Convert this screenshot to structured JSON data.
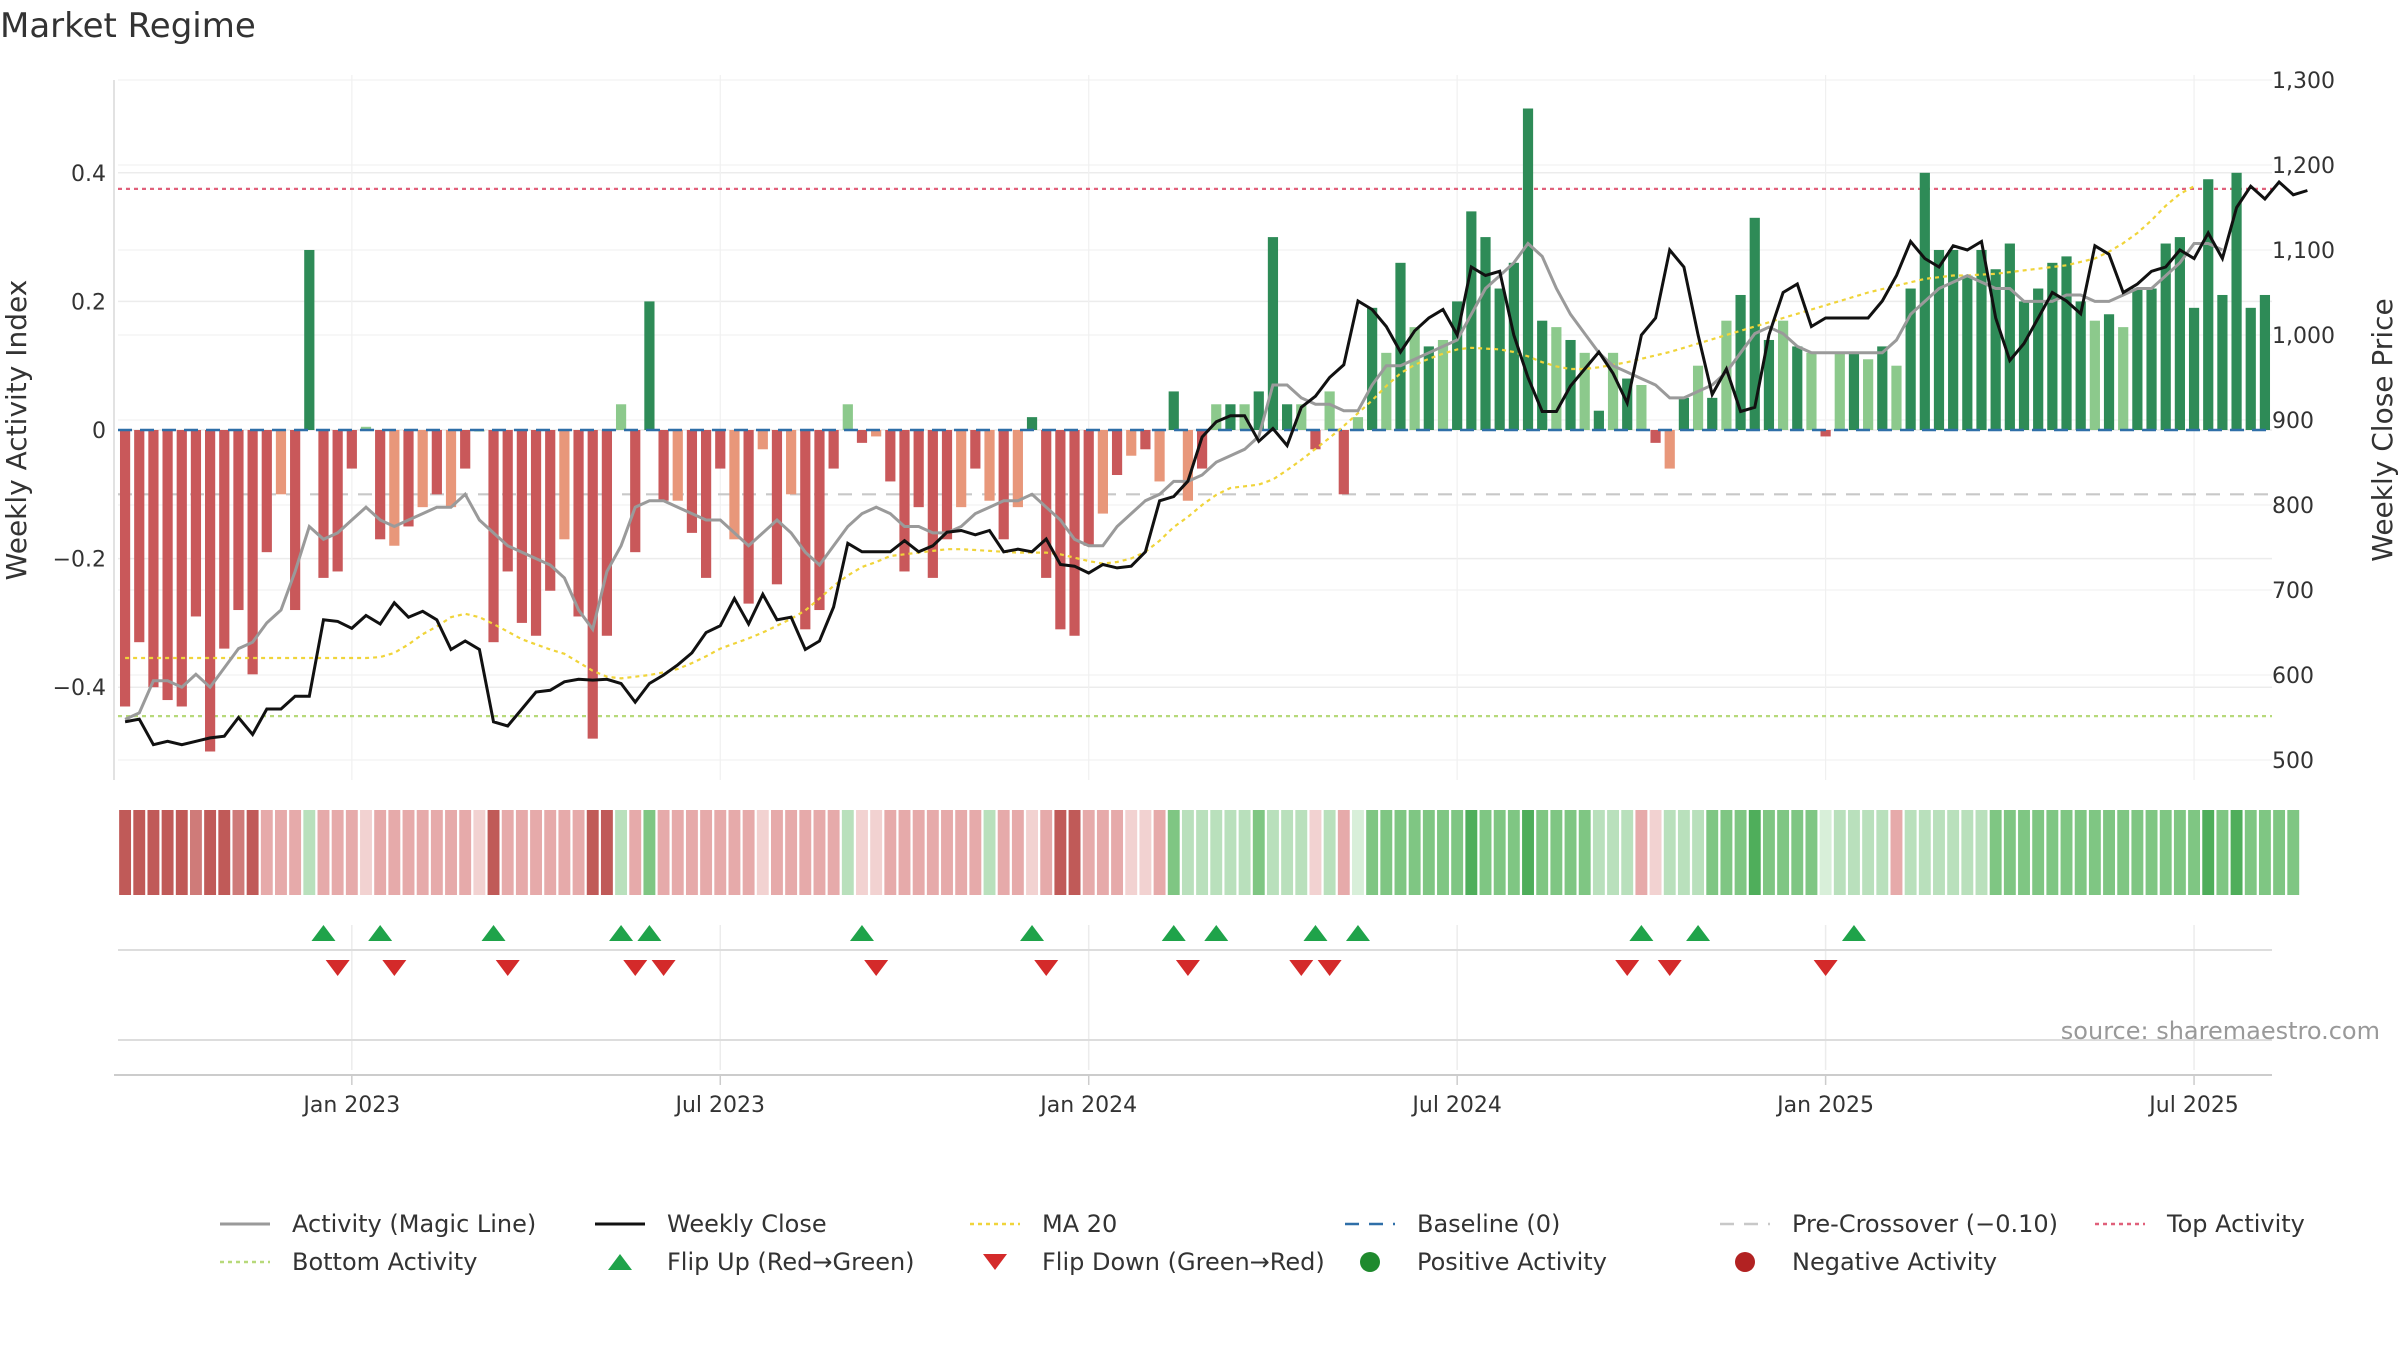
{
  "title": "Market Regime",
  "source": "source: sharemaestro.com",
  "colors": {
    "posStrong": "#2e8b57",
    "posLight": "#8cc98c",
    "negStrong": "#c9585a",
    "negLight": "#e8977a",
    "magic": "#9a9a9a",
    "close": "#111111",
    "ma": "#f0d43a",
    "baseline": "#2f6fa8",
    "precross": "#c8c8c8",
    "top": "#e0607a",
    "bottom": "#b7d97a",
    "flipUp": "#1fa34a",
    "flipDown": "#d42a2a"
  },
  "chart_data": {
    "type": "bar",
    "y_left_label": "Weekly Activity Index",
    "y_right_label": "Weekly Close Price",
    "y_left_ticks": [
      "0.4",
      "0.2",
      "0",
      "−0.2",
      "−0.4"
    ],
    "y_left_tick_values": [
      0.4,
      0.2,
      0,
      -0.2,
      -0.4
    ],
    "y_right_ticks": [
      "1,300",
      "1,200",
      "1,100",
      "1,000",
      "900",
      "800",
      "700",
      "600",
      "500"
    ],
    "y_right_tick_values": [
      1300,
      1200,
      1100,
      1000,
      900,
      800,
      700,
      600,
      500
    ],
    "ylim_left": [
      -0.54,
      0.54
    ],
    "ylim_right": [
      480,
      1300
    ],
    "x_ticks": [
      "Jan 2023",
      "Jul 2023",
      "Jan 2024",
      "Jul 2024",
      "Jan 2025",
      "Jul 2025"
    ],
    "x_tick_weeks": [
      16,
      42,
      68,
      94,
      120,
      146
    ],
    "legend": [
      {
        "label": "Activity (Magic Line)",
        "kind": "line",
        "color": "#9a9a9a"
      },
      {
        "label": "Weekly Close",
        "kind": "line",
        "color": "#111111"
      },
      {
        "label": "MA 20",
        "kind": "dotted",
        "color": "#f0d43a"
      },
      {
        "label": "Baseline (0)",
        "kind": "dashed",
        "color": "#2f6fa8"
      },
      {
        "label": "Pre-Crossover (−0.10)",
        "kind": "dashed",
        "color": "#c8c8c8"
      },
      {
        "label": "Top Activity",
        "kind": "dotted",
        "color": "#e0607a"
      },
      {
        "label": "Bottom Activity",
        "kind": "dotted",
        "color": "#b7d97a"
      },
      {
        "label": "Flip Up (Red→Green)",
        "kind": "tri-up",
        "color": "#1fa34a"
      },
      {
        "label": "Flip Down (Green→Red)",
        "kind": "tri-down",
        "color": "#d42a2a"
      },
      {
        "label": "Positive Activity",
        "kind": "dot",
        "color": "#1f8a2e"
      },
      {
        "label": "Negative Activity",
        "kind": "dot",
        "color": "#b22222"
      }
    ],
    "reference_lines": {
      "top": 0.375,
      "bottom": -0.445,
      "pre_crossover": -0.1,
      "baseline": 0
    },
    "activity": [
      -0.43,
      -0.33,
      -0.4,
      -0.42,
      -0.43,
      -0.29,
      -0.5,
      -0.34,
      -0.28,
      -0.38,
      -0.19,
      -0.1,
      -0.28,
      0.28,
      -0.23,
      -0.22,
      -0.06,
      0.005,
      -0.17,
      -0.18,
      -0.15,
      -0.12,
      -0.1,
      -0.12,
      -0.06,
      0,
      -0.33,
      -0.22,
      -0.3,
      -0.32,
      -0.25,
      -0.17,
      -0.29,
      -0.48,
      -0.32,
      0.04,
      -0.19,
      0.2,
      -0.11,
      -0.11,
      -0.16,
      -0.23,
      -0.06,
      -0.17,
      -0.27,
      -0.03,
      -0.24,
      -0.1,
      -0.31,
      -0.28,
      -0.06,
      0.04,
      -0.02,
      -0.01,
      -0.08,
      -0.22,
      -0.12,
      -0.23,
      -0.17,
      -0.12,
      -0.06,
      -0.11,
      -0.17,
      -0.12,
      0.02,
      -0.23,
      -0.31,
      -0.32,
      -0.18,
      -0.13,
      -0.07,
      -0.04,
      -0.03,
      -0.08,
      0.06,
      -0.11,
      -0.06,
      0.04,
      0.04,
      0.04,
      0.06,
      0.3,
      0.04,
      0.04,
      -0.03,
      0.06,
      -0.1,
      0.02,
      0.19,
      0.12,
      0.26,
      0.16,
      0.13,
      0.14,
      0.2,
      0.34,
      0.3,
      0.22,
      0.26,
      0.5,
      0.17,
      0.16,
      0.14,
      0.12,
      0.03,
      0.12,
      0.08,
      0.07,
      -0.02,
      -0.06,
      0.05,
      0.1,
      0.05,
      0.17,
      0.21,
      0.33,
      0.14,
      0.17,
      0.13,
      0.12,
      -0.01,
      0.12,
      0.12,
      0.11,
      0.13,
      0.1,
      0.22,
      0.4,
      0.28,
      0.28,
      0.24,
      0.28,
      0.25,
      0.29,
      0.2,
      0.22,
      0.26,
      0.27,
      0.2,
      0.17,
      0.18,
      0.16,
      0.22,
      0.22,
      0.29,
      0.3,
      0.19,
      0.39,
      0.21,
      0.4,
      0.19,
      0.21
    ],
    "magic": [
      -0.45,
      -0.44,
      -0.39,
      -0.39,
      -0.4,
      -0.38,
      -0.4,
      -0.37,
      -0.34,
      -0.33,
      -0.3,
      -0.28,
      -0.22,
      -0.15,
      -0.17,
      -0.16,
      -0.14,
      -0.12,
      -0.14,
      -0.15,
      -0.14,
      -0.13,
      -0.12,
      -0.12,
      -0.1,
      -0.14,
      -0.16,
      -0.18,
      -0.19,
      -0.2,
      -0.21,
      -0.23,
      -0.28,
      -0.31,
      -0.22,
      -0.18,
      -0.12,
      -0.11,
      -0.11,
      -0.12,
      -0.13,
      -0.14,
      -0.14,
      -0.16,
      -0.18,
      -0.16,
      -0.14,
      -0.16,
      -0.19,
      -0.21,
      -0.18,
      -0.15,
      -0.13,
      -0.12,
      -0.13,
      -0.15,
      -0.15,
      -0.16,
      -0.16,
      -0.15,
      -0.13,
      -0.12,
      -0.11,
      -0.11,
      -0.1,
      -0.12,
      -0.14,
      -0.17,
      -0.18,
      -0.18,
      -0.15,
      -0.13,
      -0.11,
      -0.1,
      -0.08,
      -0.08,
      -0.07,
      -0.05,
      -0.04,
      -0.03,
      -0.01,
      0.07,
      0.07,
      0.05,
      0.04,
      0.04,
      0.03,
      0.03,
      0.07,
      0.1,
      0.1,
      0.11,
      0.12,
      0.13,
      0.14,
      0.18,
      0.22,
      0.24,
      0.26,
      0.29,
      0.27,
      0.22,
      0.18,
      0.15,
      0.12,
      0.1,
      0.09,
      0.08,
      0.07,
      0.05,
      0.05,
      0.06,
      0.07,
      0.09,
      0.12,
      0.15,
      0.16,
      0.15,
      0.13,
      0.12,
      0.12,
      0.12,
      0.12,
      0.12,
      0.12,
      0.14,
      0.18,
      0.2,
      0.22,
      0.23,
      0.24,
      0.23,
      0.22,
      0.22,
      0.2,
      0.2,
      0.2,
      0.21,
      0.21,
      0.2,
      0.2,
      0.21,
      0.22,
      0.22,
      0.24,
      0.26,
      0.29,
      0.29,
      0.28
    ],
    "close": [
      545,
      548,
      518,
      522,
      518,
      522,
      526,
      528,
      550,
      530,
      560,
      560,
      575,
      575,
      665,
      663,
      655,
      670,
      660,
      685,
      668,
      675,
      665,
      630,
      640,
      630,
      545,
      540,
      560,
      580,
      582,
      592,
      595,
      594,
      595,
      590,
      568,
      590,
      600,
      612,
      626,
      650,
      658,
      690,
      660,
      695,
      665,
      668,
      630,
      640,
      680,
      755,
      745,
      745,
      745,
      758,
      745,
      752,
      768,
      770,
      765,
      770,
      745,
      748,
      745,
      760,
      730,
      728,
      720,
      730,
      726,
      728,
      745,
      805,
      810,
      828,
      880,
      898,
      905,
      905,
      875,
      890,
      870,
      915,
      928,
      950,
      965,
      1040,
      1030,
      1010,
      980,
      1005,
      1020,
      1030,
      1000,
      1080,
      1070,
      1075,
      1000,
      950,
      910,
      910,
      940,
      960,
      980,
      955,
      920,
      1000,
      1020,
      1100,
      1080,
      1000,
      930,
      960,
      910,
      915,
      1000,
      1050,
      1060,
      1010,
      1020,
      1020,
      1020,
      1020,
      1040,
      1070,
      1110,
      1090,
      1080,
      1105,
      1100,
      1110,
      1020,
      970,
      990,
      1020,
      1050,
      1040,
      1025,
      1105,
      1095,
      1050,
      1060,
      1075,
      1080,
      1100,
      1090,
      1120,
      1090,
      1150,
      1175,
      1160,
      1180,
      1165,
      1170
    ],
    "ma20": [
      620,
      620,
      620,
      620,
      620,
      620,
      620,
      620,
      620,
      620,
      620,
      620,
      620,
      620,
      620,
      620,
      620,
      620,
      621,
      626,
      636,
      648,
      657,
      668,
      672,
      668,
      660,
      651,
      642,
      636,
      630,
      625,
      615,
      605,
      598,
      596,
      598,
      600,
      603,
      607,
      614,
      622,
      631,
      637,
      643,
      650,
      658,
      666,
      676,
      690,
      705,
      717,
      727,
      733,
      740,
      742,
      744,
      746,
      748,
      748,
      747,
      746,
      745,
      744,
      744,
      744,
      742,
      738,
      734,
      731,
      733,
      737,
      745,
      758,
      774,
      786,
      800,
      812,
      820,
      822,
      824,
      830,
      841,
      853,
      866,
      879,
      893,
      908,
      923,
      940,
      955,
      965,
      972,
      978,
      983,
      985,
      984,
      983,
      980,
      975,
      968,
      963,
      960,
      960,
      962,
      965,
      968,
      972,
      976,
      980,
      985,
      990,
      995,
      1000,
      1005,
      1010,
      1015,
      1020,
      1025,
      1030,
      1035,
      1040,
      1045,
      1050,
      1054,
      1058,
      1062,
      1066,
      1068,
      1070,
      1070,
      1071,
      1072,
      1074,
      1076,
      1078,
      1080,
      1082,
      1086,
      1090,
      1098,
      1108,
      1120,
      1135,
      1152,
      1166,
      1175
    ],
    "regime": [
      "R",
      "R",
      "R",
      "R",
      "R",
      "R",
      "R",
      "R",
      "R",
      "R",
      "r",
      "r",
      "r",
      "g",
      "r",
      "r",
      "r",
      "r",
      "r",
      "r",
      "r",
      "r",
      "r",
      "r",
      "r",
      "r",
      "R",
      "r",
      "r",
      "r",
      "r",
      "r",
      "r",
      "R",
      "R",
      "g",
      "r",
      "G",
      "r",
      "r",
      "r",
      "r",
      "r",
      "r",
      "r",
      "r",
      "r",
      "r",
      "r",
      "r",
      "r",
      "g",
      "r",
      "r",
      "r",
      "r",
      "r",
      "r",
      "r",
      "r",
      "r",
      "g",
      "r",
      "r",
      "r",
      "r",
      "R",
      "R",
      "r",
      "r",
      "r",
      "r",
      "r",
      "r",
      "G",
      "g",
      "g",
      "g",
      "g",
      "g",
      "G",
      "g",
      "g",
      "g",
      "r",
      "g",
      "r",
      "g",
      "G",
      "G",
      "G",
      "G",
      "G",
      "G",
      "G",
      "G",
      "G",
      "G",
      "G",
      "G",
      "G",
      "G",
      "G",
      "G",
      "g",
      "g",
      "g",
      "r",
      "r",
      "g",
      "g",
      "g",
      "G",
      "G",
      "G",
      "G",
      "G",
      "G",
      "G",
      "G",
      "g",
      "g",
      "g",
      "g",
      "g",
      "r",
      "g",
      "g",
      "g",
      "g",
      "g",
      "g",
      "G",
      "G",
      "G",
      "G",
      "G",
      "G",
      "G",
      "G",
      "G",
      "G",
      "G",
      "G",
      "G",
      "G",
      "G",
      "G",
      "G",
      "G",
      "G",
      "G",
      "G",
      "G"
    ],
    "flips_up": [
      14,
      18,
      26,
      35,
      37,
      52,
      64,
      74,
      77,
      84,
      87,
      107,
      111,
      122
    ],
    "flips_down": [
      15,
      19,
      27,
      36,
      38,
      53,
      65,
      75,
      83,
      85,
      106,
      109,
      120
    ]
  }
}
